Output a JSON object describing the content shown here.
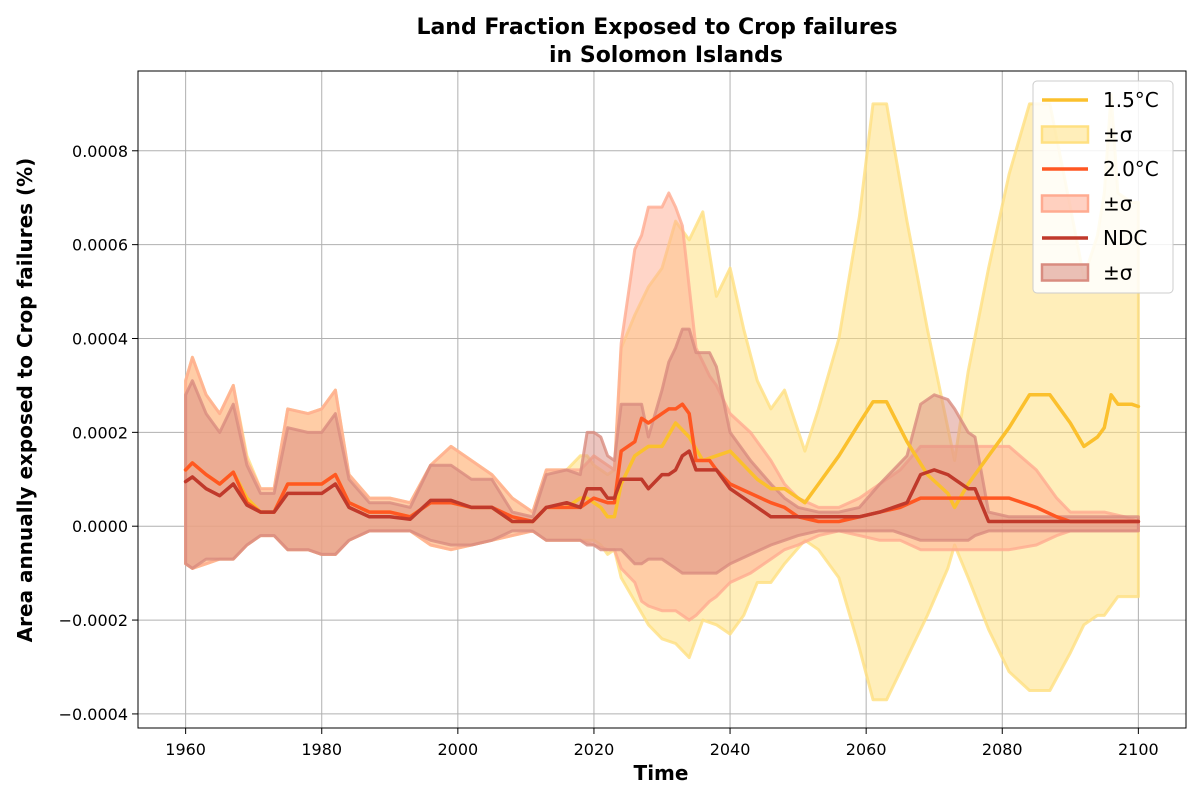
{
  "chart_data": {
    "type": "line",
    "title": "Land Fraction Exposed to Crop failures",
    "subtitle": "in Solomon Islands",
    "xlabel": "Time",
    "ylabel": "Area annually exposed to Crop failures (%)",
    "xlim": [
      1953,
      2107
    ],
    "ylim": [
      -0.00043,
      0.00097
    ],
    "xticks": [
      1960,
      1980,
      2000,
      2020,
      2040,
      2060,
      2080,
      2100
    ],
    "yticks": [
      -0.0004,
      -0.0002,
      0.0,
      0.0002,
      0.0004,
      0.0006,
      0.0008
    ],
    "ytick_labels": [
      "−0.0004",
      "−0.0002",
      "0.0000",
      "0.0002",
      "0.0004",
      "0.0006",
      "0.0008"
    ],
    "grid": true,
    "legend": "top-right",
    "series": [
      {
        "name": "1.5°C",
        "band_label": "±σ",
        "color": "#fbc02d",
        "band_color": "#ffe082",
        "x": [
          1960,
          1961,
          1963,
          1965,
          1967,
          1969,
          1971,
          1973,
          1975,
          1978,
          1980,
          1982,
          1984,
          1987,
          1990,
          1993,
          1996,
          1999,
          2002,
          2005,
          2008,
          2011,
          2013,
          2016,
          2018,
          2019,
          2020,
          2021,
          2022,
          2023,
          2024,
          2026,
          2028,
          2030,
          2032,
          2034,
          2036,
          2038,
          2040,
          2042,
          2044,
          2046,
          2048,
          2051,
          2053,
          2056,
          2059,
          2061,
          2063,
          2066,
          2069,
          2072,
          2073,
          2075,
          2078,
          2081,
          2084,
          2087,
          2090,
          2092,
          2094,
          2095,
          2096,
          2097,
          2099,
          2100
        ],
        "values": [
          0.00012,
          0.000135,
          0.00011,
          9e-05,
          0.000115,
          6e-05,
          3e-05,
          3e-05,
          9e-05,
          9e-05,
          9e-05,
          0.00011,
          5e-05,
          3e-05,
          3e-05,
          2e-05,
          5e-05,
          5e-05,
          4e-05,
          4e-05,
          1e-05,
          1e-05,
          4e-05,
          4e-05,
          6e-05,
          6e-05,
          5e-05,
          4e-05,
          2e-05,
          2e-05,
          9e-05,
          0.00015,
          0.00017,
          0.00017,
          0.00022,
          0.00019,
          0.00014,
          0.00015,
          0.00016,
          0.00013,
          0.0001,
          8e-05,
          8e-05,
          5e-05,
          9e-05,
          0.00015,
          0.00022,
          0.000265,
          0.000265,
          0.00018,
          0.00011,
          7e-05,
          4e-05,
          9e-05,
          0.00015,
          0.00021,
          0.00028,
          0.00028,
          0.00022,
          0.00017,
          0.00019,
          0.00021,
          0.00028,
          0.00026,
          0.00026,
          0.000255
        ],
        "upper": [
          0.00031,
          0.00036,
          0.00028,
          0.00024,
          0.0003,
          0.00015,
          8e-05,
          8e-05,
          0.00025,
          0.00024,
          0.00025,
          0.00029,
          0.00011,
          6e-05,
          6e-05,
          5e-05,
          0.00013,
          0.00017,
          0.00014,
          0.00011,
          6e-05,
          3e-05,
          0.00012,
          0.00012,
          0.00015,
          0.00015,
          0.00013,
          0.00012,
          0.00011,
          0.00012,
          0.00038,
          0.00045,
          0.00051,
          0.00055,
          0.00065,
          0.00061,
          0.00067,
          0.00049,
          0.00055,
          0.00042,
          0.00031,
          0.00025,
          0.00029,
          0.00016,
          0.00025,
          0.0004,
          0.00066,
          0.0009,
          0.0009,
          0.00065,
          0.00042,
          0.00021,
          0.00014,
          0.00033,
          0.00055,
          0.00075,
          0.0009,
          0.0009,
          0.00068,
          0.00053,
          0.00062,
          0.00071,
          0.00092,
          0.00071,
          0.00069,
          0.00069
        ],
        "lower": [
          -8e-05,
          -9e-05,
          -8e-05,
          -7e-05,
          -7e-05,
          -4e-05,
          -2e-05,
          -2e-05,
          -5e-05,
          -5e-05,
          -6e-05,
          -6e-05,
          -3e-05,
          -1e-05,
          -1e-05,
          -1e-05,
          -4e-05,
          -5e-05,
          -4e-05,
          -3e-05,
          -2e-05,
          -1e-05,
          -3e-05,
          -3e-05,
          -3e-05,
          -3e-05,
          -3e-05,
          -4e-05,
          -6e-05,
          -5e-05,
          -0.00011,
          -0.00016,
          -0.00021,
          -0.00024,
          -0.00025,
          -0.00028,
          -0.0002,
          -0.00021,
          -0.00023,
          -0.00019,
          -0.00012,
          -0.00012,
          -8e-05,
          -3e-05,
          -5e-05,
          -0.00011,
          -0.00026,
          -0.00037,
          -0.00037,
          -0.00028,
          -0.00019,
          -9e-05,
          -4e-05,
          -0.00011,
          -0.00022,
          -0.00031,
          -0.00035,
          -0.00035,
          -0.00027,
          -0.00021,
          -0.00019,
          -0.00019,
          -0.00017,
          -0.00015,
          -0.00015,
          -0.00015
        ]
      },
      {
        "name": "2.0°C",
        "band_label": "±σ",
        "color": "#ff5722",
        "band_color": "#ffab91",
        "x": [
          1960,
          1961,
          1963,
          1965,
          1967,
          1969,
          1971,
          1973,
          1975,
          1978,
          1980,
          1982,
          1984,
          1987,
          1990,
          1993,
          1996,
          1999,
          2002,
          2005,
          2008,
          2011,
          2013,
          2016,
          2018,
          2020,
          2022,
          2023,
          2024,
          2026,
          2027,
          2028,
          2030,
          2031,
          2032,
          2033,
          2034,
          2035,
          2037,
          2038,
          2040,
          2043,
          2046,
          2048,
          2050,
          2053,
          2056,
          2059,
          2062,
          2065,
          2068,
          2072,
          2075,
          2078,
          2081,
          2085,
          2088,
          2090,
          2093,
          2095,
          2098,
          2100
        ],
        "values": [
          0.00012,
          0.000135,
          0.00011,
          9e-05,
          0.000115,
          5e-05,
          3e-05,
          3e-05,
          9e-05,
          9e-05,
          9e-05,
          0.00011,
          5e-05,
          3e-05,
          3e-05,
          2e-05,
          5e-05,
          5e-05,
          4e-05,
          4e-05,
          2e-05,
          1e-05,
          4e-05,
          4e-05,
          4e-05,
          6e-05,
          5e-05,
          5e-05,
          0.00016,
          0.00018,
          0.00023,
          0.00022,
          0.00024,
          0.00025,
          0.00025,
          0.00026,
          0.00024,
          0.00014,
          0.00014,
          0.00012,
          9e-05,
          7e-05,
          5e-05,
          4e-05,
          2e-05,
          1e-05,
          1e-05,
          2e-05,
          3e-05,
          4e-05,
          6e-05,
          6e-05,
          6e-05,
          6e-05,
          6e-05,
          4e-05,
          2e-05,
          1e-05,
          1e-05,
          1e-05,
          1e-05,
          1e-05
        ],
        "upper": [
          0.00031,
          0.00036,
          0.00028,
          0.00024,
          0.0003,
          0.00014,
          8e-05,
          8e-05,
          0.00025,
          0.00024,
          0.00025,
          0.00029,
          0.00011,
          6e-05,
          6e-05,
          5e-05,
          0.00013,
          0.00017,
          0.00014,
          0.00011,
          6e-05,
          3e-05,
          0.00012,
          0.00012,
          0.00012,
          0.00015,
          0.00013,
          0.00012,
          0.00039,
          0.00059,
          0.00062,
          0.00068,
          0.00068,
          0.00071,
          0.00068,
          0.00064,
          0.00051,
          0.00038,
          0.00032,
          0.0003,
          0.00024,
          0.0002,
          0.00014,
          9e-05,
          6e-05,
          4e-05,
          4e-05,
          6e-05,
          9e-05,
          0.00012,
          0.00017,
          0.00017,
          0.00017,
          0.00017,
          0.00017,
          0.00012,
          6e-05,
          3e-05,
          3e-05,
          3e-05,
          2e-05,
          1e-05
        ],
        "lower": [
          -8e-05,
          -9e-05,
          -8e-05,
          -7e-05,
          -7e-05,
          -4e-05,
          -2e-05,
          -2e-05,
          -5e-05,
          -5e-05,
          -6e-05,
          -6e-05,
          -3e-05,
          -1e-05,
          -1e-05,
          -1e-05,
          -4e-05,
          -5e-05,
          -4e-05,
          -3e-05,
          -2e-05,
          -1e-05,
          -3e-05,
          -3e-05,
          -3e-05,
          -4e-05,
          -5e-05,
          -5e-05,
          -9e-05,
          -0.00012,
          -0.00016,
          -0.00017,
          -0.00018,
          -0.00018,
          -0.00018,
          -0.00019,
          -0.0002,
          -0.00019,
          -0.00016,
          -0.00015,
          -0.00012,
          -0.0001,
          -7e-05,
          -5e-05,
          -4e-05,
          -2e-05,
          -1e-05,
          -2e-05,
          -3e-05,
          -3e-05,
          -5e-05,
          -5e-05,
          -5e-05,
          -5e-05,
          -5e-05,
          -4e-05,
          -2e-05,
          -1e-05,
          -1e-05,
          -1e-05,
          -1e-05,
          -1e-05
        ]
      },
      {
        "name": "NDC",
        "band_label": "±σ",
        "color": "#c0392b",
        "band_color": "#d98c80",
        "x": [
          1960,
          1961,
          1963,
          1965,
          1967,
          1969,
          1971,
          1973,
          1975,
          1978,
          1980,
          1982,
          1984,
          1987,
          1990,
          1993,
          1996,
          1999,
          2002,
          2005,
          2008,
          2011,
          2013,
          2016,
          2018,
          2019,
          2020,
          2021,
          2022,
          2023,
          2024,
          2026,
          2027,
          2028,
          2030,
          2031,
          2032,
          2033,
          2034,
          2035,
          2037,
          2038,
          2040,
          2043,
          2046,
          2048,
          2050,
          2053,
          2056,
          2059,
          2062,
          2064,
          2066,
          2068,
          2070,
          2072,
          2073,
          2075,
          2076,
          2078,
          2081,
          2084,
          2087,
          2090,
          2093,
          2095,
          2098,
          2100
        ],
        "values": [
          9.5e-05,
          0.000105,
          8e-05,
          6.5e-05,
          9e-05,
          4.5e-05,
          3e-05,
          3e-05,
          7e-05,
          7e-05,
          7e-05,
          9e-05,
          4e-05,
          2e-05,
          2e-05,
          1.5e-05,
          5.5e-05,
          5.5e-05,
          4e-05,
          4e-05,
          1e-05,
          1e-05,
          4e-05,
          5e-05,
          4e-05,
          8e-05,
          8e-05,
          8e-05,
          6e-05,
          6e-05,
          0.0001,
          0.0001,
          0.0001,
          8e-05,
          0.00011,
          0.00011,
          0.00012,
          0.00015,
          0.00016,
          0.00012,
          0.00012,
          0.00012,
          8e-05,
          5e-05,
          2e-05,
          2e-05,
          2e-05,
          2e-05,
          2e-05,
          2e-05,
          3e-05,
          4e-05,
          5e-05,
          0.00011,
          0.00012,
          0.00011,
          0.0001,
          8e-05,
          8e-05,
          1e-05,
          1e-05,
          1e-05,
          1e-05,
          1e-05,
          1e-05,
          1e-05,
          1e-05,
          1e-05
        ],
        "upper": [
          0.00028,
          0.00031,
          0.00024,
          0.0002,
          0.00026,
          0.00013,
          7e-05,
          7e-05,
          0.00021,
          0.0002,
          0.0002,
          0.00024,
          0.0001,
          5e-05,
          5e-05,
          4e-05,
          0.00013,
          0.00013,
          0.0001,
          0.0001,
          3e-05,
          2e-05,
          0.00011,
          0.00012,
          0.00011,
          0.0002,
          0.0002,
          0.00019,
          0.00015,
          0.00014,
          0.00026,
          0.00026,
          0.00026,
          0.00019,
          0.00029,
          0.00035,
          0.00038,
          0.00042,
          0.00042,
          0.00037,
          0.00037,
          0.00034,
          0.0002,
          0.00014,
          9e-05,
          6e-05,
          4e-05,
          3e-05,
          3e-05,
          4e-05,
          9e-05,
          0.00012,
          0.00015,
          0.00026,
          0.00028,
          0.00027,
          0.00025,
          0.0002,
          0.00019,
          3e-05,
          2e-05,
          2e-05,
          2e-05,
          2e-05,
          2e-05,
          2e-05,
          2e-05,
          2e-05
        ],
        "lower": [
          -8e-05,
          -9e-05,
          -7e-05,
          -7e-05,
          -7e-05,
          -4e-05,
          -2e-05,
          -2e-05,
          -5e-05,
          -5e-05,
          -6e-05,
          -6e-05,
          -3e-05,
          -1e-05,
          -1e-05,
          -1e-05,
          -3e-05,
          -4e-05,
          -4e-05,
          -3e-05,
          -1e-05,
          -1e-05,
          -3e-05,
          -3e-05,
          -3e-05,
          -4e-05,
          -4e-05,
          -5e-05,
          -5e-05,
          -5e-05,
          -5e-05,
          -8e-05,
          -8e-05,
          -7e-05,
          -7e-05,
          -8e-05,
          -9e-05,
          -0.0001,
          -0.0001,
          -0.0001,
          -0.0001,
          -0.0001,
          -8e-05,
          -6e-05,
          -4e-05,
          -3e-05,
          -2e-05,
          -1e-05,
          -1e-05,
          -1e-05,
          -1e-05,
          -1e-05,
          -2e-05,
          -3e-05,
          -3e-05,
          -3e-05,
          -3e-05,
          -3e-05,
          -2e-05,
          -1e-05,
          -1e-05,
          -1e-05,
          -1e-05,
          -1e-05,
          -1e-05,
          -1e-05,
          -1e-05,
          -1e-05
        ]
      }
    ]
  }
}
